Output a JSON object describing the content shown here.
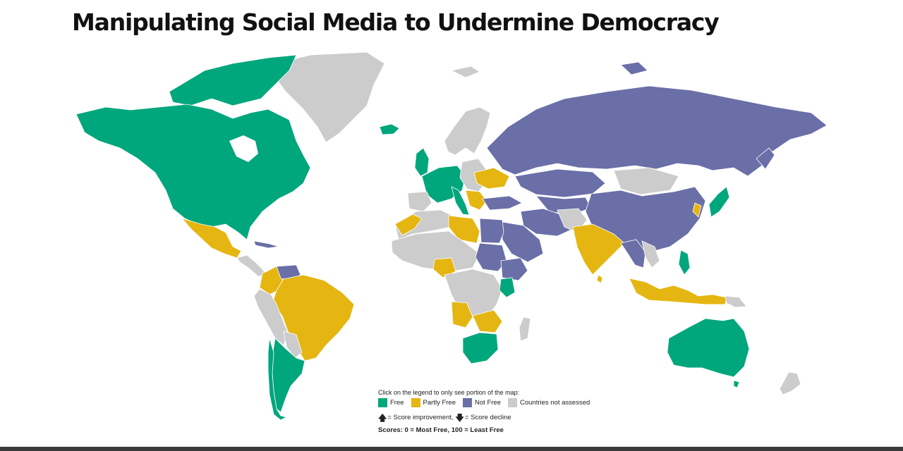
{
  "title": "Manipulating Social Media to Undermine Democracy",
  "legend": {
    "instruction": "Click on the legend to only see portion of the map:",
    "items": [
      {
        "label": "Free",
        "color": "#00a67c"
      },
      {
        "label": "Partly Free",
        "color": "#e5b611"
      },
      {
        "label": "Not Free",
        "color": "#6a6fa8"
      },
      {
        "label": "Countries not assessed",
        "color": "#cccccc"
      }
    ],
    "score_up_icon": "arrow-up-icon",
    "score_up_text": "= Score improvement,",
    "score_down_icon": "arrow-down-icon",
    "score_down_text": "= Score decline",
    "scores_note": "Scores: 0 = Most Free, 100 = Least Free"
  }
}
